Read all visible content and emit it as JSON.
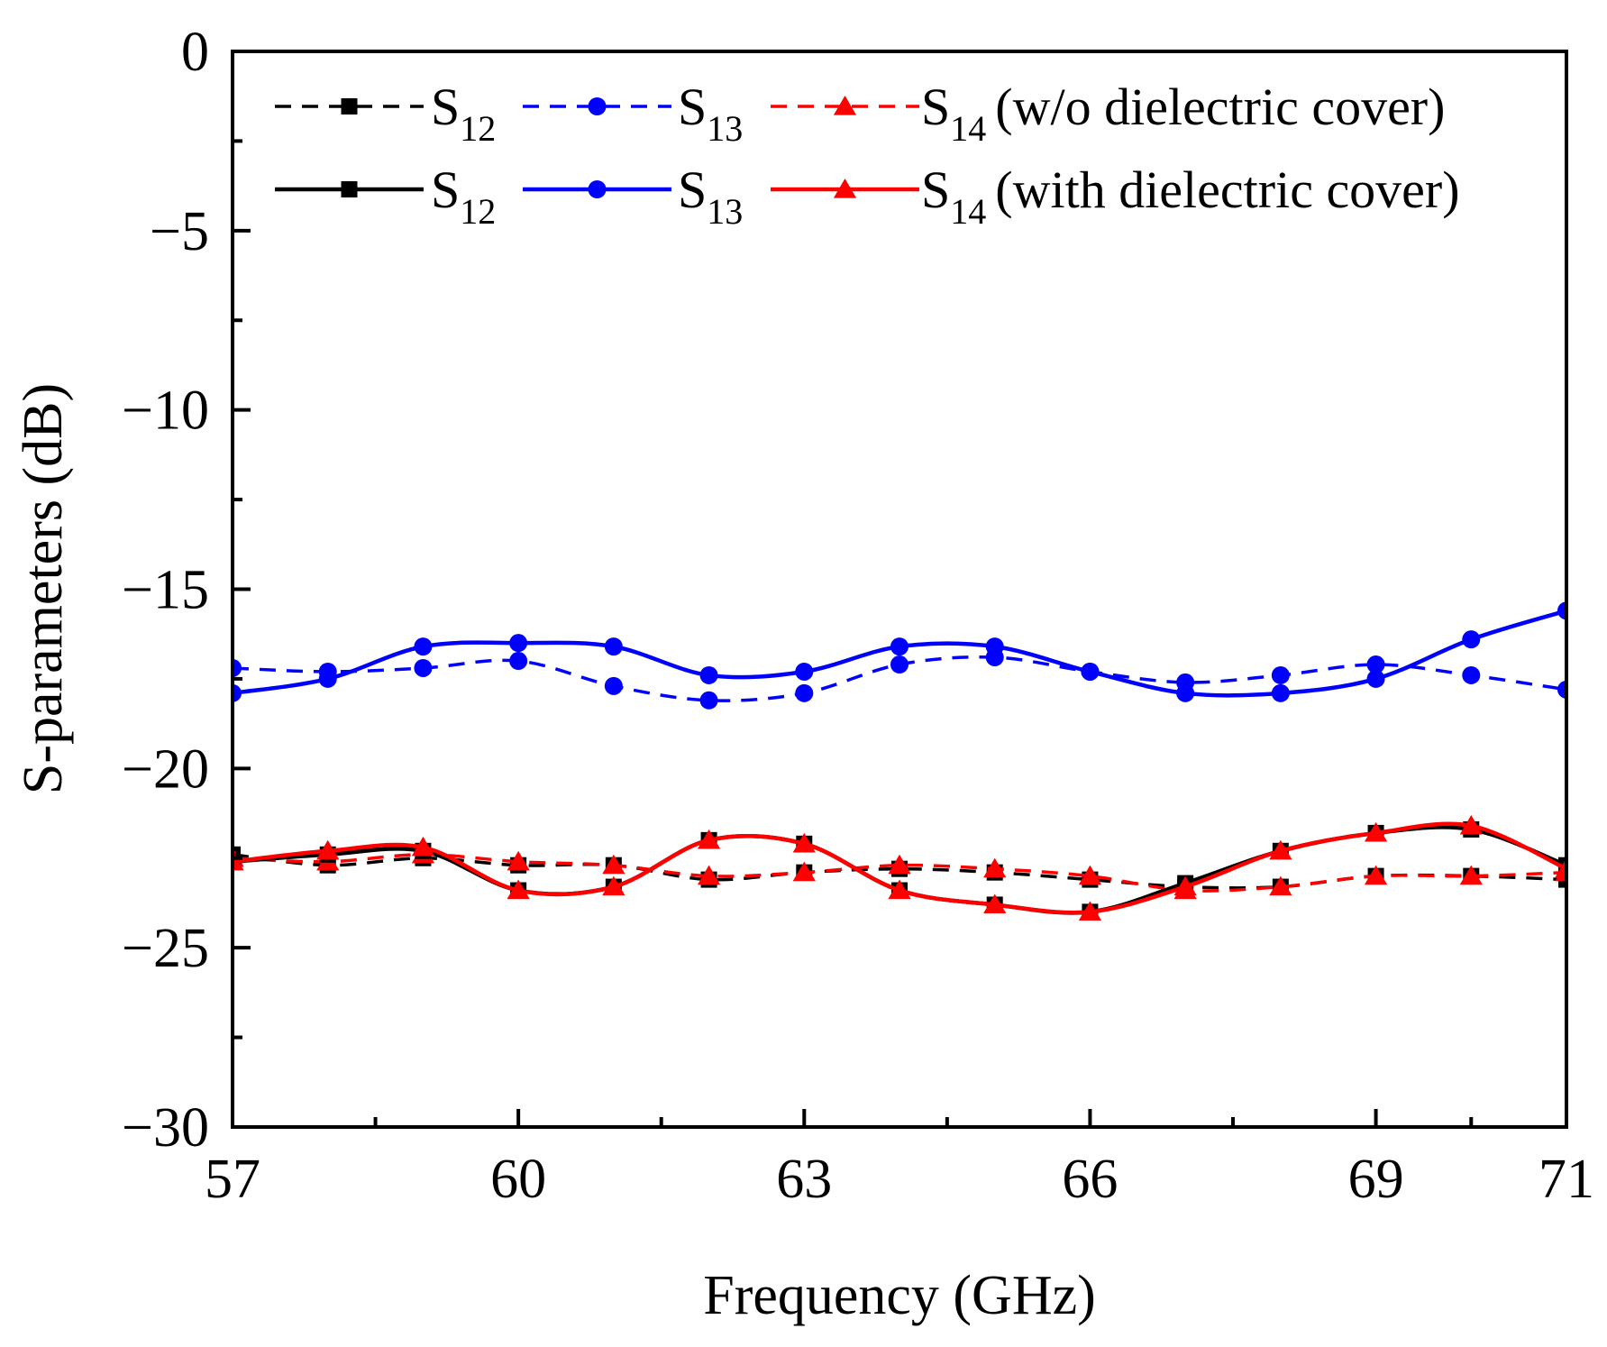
{
  "chart_data": {
    "type": "line",
    "xlabel": "Frequency (GHz)",
    "ylabel": "S-parameters (dB)",
    "xlim": [
      57,
      71
    ],
    "ylim": [
      -30,
      0
    ],
    "xticks": [
      57,
      60,
      63,
      66,
      69,
      71
    ],
    "xticks_minor": [
      58.5,
      61.5,
      64.5,
      67.5,
      70
    ],
    "yticks": [
      0,
      -5,
      -10,
      -15,
      -20,
      -25,
      -30
    ],
    "yticks_minor": [
      -2.5,
      -7.5,
      -12.5,
      -17.5,
      -22.5,
      -27.5
    ],
    "ytick_labels": [
      "0",
      "−5",
      "−10",
      "−15",
      "−20",
      "−25",
      "−30"
    ],
    "x": [
      57,
      58,
      59,
      60,
      61,
      62,
      63,
      64,
      65,
      66,
      67,
      68,
      69,
      70,
      71
    ],
    "legend_position": "top",
    "legend_rows": [
      {
        "suffix": "(w/o  dielectric cover)"
      },
      {
        "suffix": "(with dielectric cover)"
      }
    ],
    "series": [
      {
        "name": "S",
        "sub": "12",
        "style": "dashed",
        "marker": "square",
        "color": "#000000",
        "values": [
          -22.4,
          -22.7,
          -22.5,
          -22.7,
          -22.7,
          -23.1,
          -22.9,
          -22.8,
          -22.9,
          -23.1,
          -23.3,
          -23.3,
          -23.0,
          -23.0,
          -23.1
        ]
      },
      {
        "name": "S",
        "sub": "13",
        "style": "dashed",
        "marker": "circle",
        "color": "#0000ff",
        "values": [
          -17.2,
          -17.3,
          -17.2,
          -17.0,
          -17.7,
          -18.1,
          -17.9,
          -17.1,
          -16.9,
          -17.3,
          -17.6,
          -17.4,
          -17.1,
          -17.4,
          -17.8
        ]
      },
      {
        "name": "S",
        "sub": "14",
        "style": "dashed",
        "marker": "triangle",
        "color": "#ff0000",
        "values": [
          -22.5,
          -22.6,
          -22.4,
          -22.6,
          -22.7,
          -23.0,
          -22.9,
          -22.7,
          -22.8,
          -23.0,
          -23.4,
          -23.3,
          -23.0,
          -23.0,
          -22.9
        ]
      },
      {
        "name": "S",
        "sub": "12",
        "style": "solid",
        "marker": "square",
        "color": "#000000",
        "values": [
          -22.6,
          -22.4,
          -22.3,
          -23.4,
          -23.3,
          -22.0,
          -22.1,
          -23.4,
          -23.8,
          -24.0,
          -23.2,
          -22.3,
          -21.8,
          -21.7,
          -22.7
        ]
      },
      {
        "name": "S",
        "sub": "13",
        "style": "solid",
        "marker": "circle",
        "color": "#0000ff",
        "values": [
          -17.9,
          -17.5,
          -16.6,
          -16.5,
          -16.6,
          -17.4,
          -17.3,
          -16.6,
          -16.6,
          -17.3,
          -17.9,
          -17.9,
          -17.5,
          -16.4,
          -15.6
        ]
      },
      {
        "name": "S",
        "sub": "14",
        "style": "solid",
        "marker": "triangle",
        "color": "#ff0000",
        "values": [
          -22.6,
          -22.3,
          -22.2,
          -23.4,
          -23.3,
          -22.0,
          -22.1,
          -23.4,
          -23.8,
          -24.0,
          -23.3,
          -22.3,
          -21.8,
          -21.6,
          -22.8
        ]
      }
    ]
  }
}
